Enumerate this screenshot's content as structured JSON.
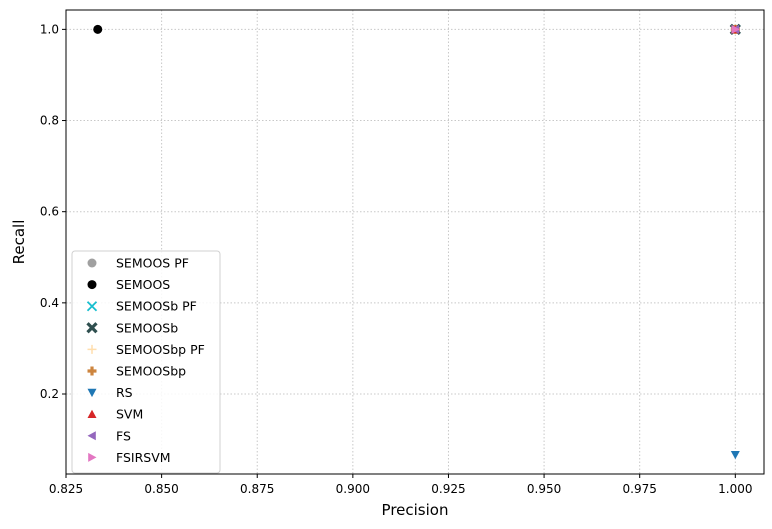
{
  "chart_data": {
    "type": "scatter",
    "title": "",
    "xlabel": "Precision",
    "ylabel": "Recall",
    "xlim": [
      0.825,
      1.0075
    ],
    "ylim": [
      0.0245,
      1.0425
    ],
    "xticks": [
      0.825,
      0.85,
      0.875,
      0.9,
      0.925,
      0.95,
      0.975,
      1.0
    ],
    "xtick_labels": [
      "0.825",
      "0.850",
      "0.875",
      "0.900",
      "0.925",
      "0.950",
      "0.975",
      "1.000"
    ],
    "yticks": [
      0.2,
      0.4,
      0.6,
      0.8,
      1.0
    ],
    "ytick_labels": [
      "0.2",
      "0.4",
      "0.6",
      "0.8",
      "1.0"
    ],
    "grid": true,
    "legend_position": "lower-left",
    "series": [
      {
        "name": "SEMOOS PF",
        "marker": "circle",
        "color": "#a0a0a0",
        "points": [
          [
            0.8333,
            1.0
          ]
        ]
      },
      {
        "name": "SEMOOS",
        "marker": "circle",
        "color": "#000000",
        "points": [
          [
            0.8333,
            1.0
          ]
        ]
      },
      {
        "name": "SEMOOSb PF",
        "marker": "x",
        "color": "#17becf",
        "points": [
          [
            1.0,
            1.0
          ]
        ]
      },
      {
        "name": "SEMOOSb",
        "marker": "X",
        "color": "#2f4f4f",
        "points": [
          [
            1.0,
            1.0
          ]
        ]
      },
      {
        "name": "SEMOOSbp PF",
        "marker": "plus-thin",
        "color": "#ffdead",
        "points": [
          [
            1.0,
            1.0
          ]
        ]
      },
      {
        "name": "SEMOOSbp",
        "marker": "plus",
        "color": "#cd853f",
        "points": [
          [
            1.0,
            1.0
          ]
        ]
      },
      {
        "name": "RS",
        "marker": "triangle-down",
        "color": "#1f77b4",
        "points": [
          [
            1.0,
            0.0667
          ]
        ]
      },
      {
        "name": "SVM",
        "marker": "triangle-up",
        "color": "#d62728",
        "points": [
          [
            1.0,
            1.0
          ]
        ]
      },
      {
        "name": "FS",
        "marker": "triangle-left",
        "color": "#9467bd",
        "points": [
          [
            1.0,
            1.0
          ]
        ]
      },
      {
        "name": "FSIRSVM",
        "marker": "triangle-right",
        "color": "#e377c2",
        "points": [
          [
            1.0,
            1.0
          ]
        ]
      }
    ]
  }
}
